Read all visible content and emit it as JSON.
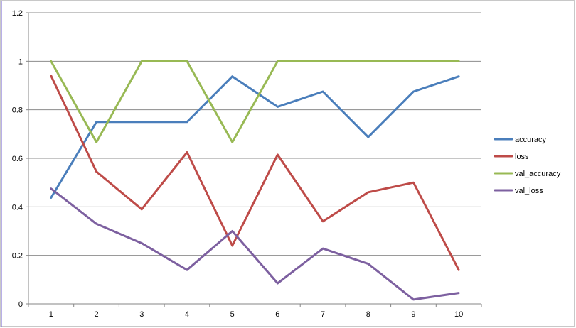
{
  "chart_data": {
    "type": "line",
    "x": [
      1,
      2,
      3,
      4,
      5,
      6,
      7,
      8,
      9,
      10
    ],
    "ylim": [
      0,
      1.2
    ],
    "yticks": [
      0,
      0.2,
      0.4,
      0.6,
      0.8,
      1,
      1.2
    ],
    "ytick_labels": [
      "0",
      "0.2",
      "0.4",
      "0.6",
      "0.8",
      "1",
      "1.2"
    ],
    "xtick_labels": [
      "1",
      "2",
      "3",
      "4",
      "5",
      "6",
      "7",
      "8",
      "9",
      "10"
    ],
    "grid": "horizontal",
    "legend_position": "right",
    "series": [
      {
        "name": "accuracy",
        "color": "#4a7ebb",
        "values": [
          0.4375,
          0.75,
          0.75,
          0.75,
          0.9375,
          0.8125,
          0.875,
          0.6875,
          0.875,
          0.9375
        ]
      },
      {
        "name": "loss",
        "color": "#be4b48",
        "values": [
          0.94,
          0.545,
          0.39,
          0.625,
          0.24,
          0.615,
          0.34,
          0.46,
          0.5,
          0.14
        ]
      },
      {
        "name": "val_accuracy",
        "color": "#98b954",
        "values": [
          1.0,
          0.6667,
          1.0,
          1.0,
          0.6667,
          1.0,
          1.0,
          1.0,
          1.0,
          1.0
        ]
      },
      {
        "name": "val_loss",
        "color": "#7d60a0",
        "values": [
          0.475,
          0.33,
          0.25,
          0.14,
          0.3,
          0.085,
          0.228,
          0.165,
          0.018,
          0.045
        ]
      }
    ]
  }
}
